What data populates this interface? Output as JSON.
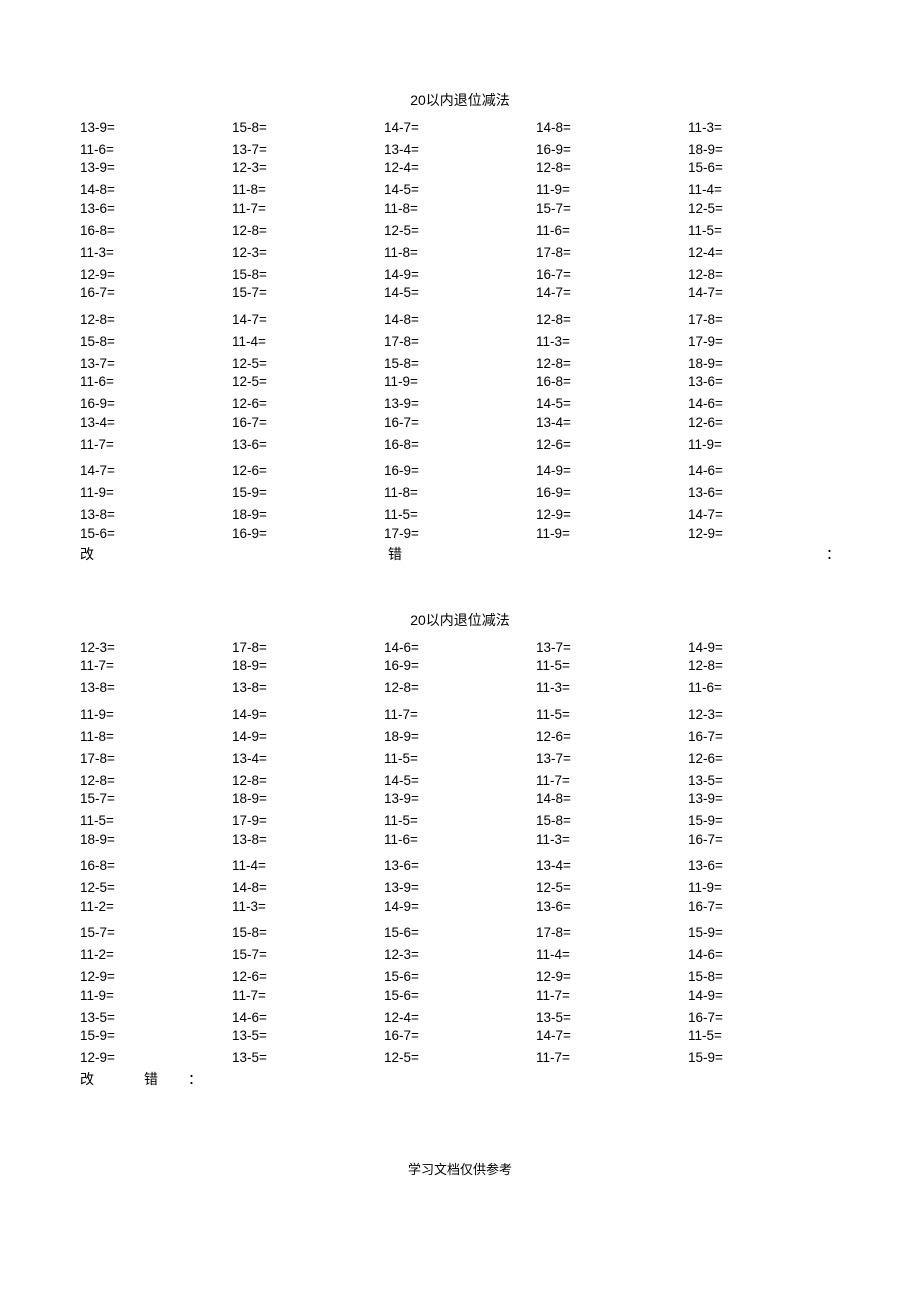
{
  "worksheet1": {
    "title": "20以内退位减法",
    "rows": [
      [
        "13-9=",
        "15-8=",
        "14-7=",
        "14-8=",
        "11-3="
      ],
      [
        "11-6=",
        "13-7=",
        "13-4=",
        "16-9=",
        "18-9="
      ],
      [
        "13-9=",
        "12-3=",
        "12-4=",
        "12-8=",
        "15-6="
      ],
      [
        "14-8=",
        "11-8=",
        "14-5=",
        "11-9=",
        "11-4="
      ],
      [
        "13-6=",
        "11-7=",
        "11-8=",
        "15-7=",
        "12-5="
      ],
      [
        "16-8=",
        "12-8=",
        "12-5=",
        "11-6=",
        "11-5="
      ],
      [
        "11-3=",
        "12-3=",
        "11-8=",
        "17-8=",
        "12-4="
      ],
      [
        "12-9=",
        "15-8=",
        "14-9=",
        "16-7=",
        "12-8="
      ],
      [
        "16-7=",
        "15-7=",
        "14-5=",
        "14-7=",
        "14-7="
      ],
      [
        "12-8=",
        "14-7=",
        "14-8=",
        "12-8=",
        "17-8="
      ],
      [
        "15-8=",
        "11-4=",
        "17-8=",
        "11-3=",
        "17-9="
      ],
      [
        "13-7=",
        "12-5=",
        "15-8=",
        "12-8=",
        "18-9="
      ],
      [
        "11-6=",
        "12-5=",
        "11-9=",
        "16-8=",
        "13-6="
      ],
      [
        "16-9=",
        "12-6=",
        "13-9=",
        "14-5=",
        "14-6="
      ],
      [
        "13-4=",
        "16-7=",
        "16-7=",
        "13-4=",
        "12-6="
      ],
      [
        "11-7=",
        "13-6=",
        "16-8=",
        "12-6=",
        "11-9="
      ],
      [
        "14-7=",
        "12-6=",
        "16-9=",
        "14-9=",
        "14-6="
      ],
      [
        "11-9=",
        "15-9=",
        "11-8=",
        "16-9=",
        "13-6="
      ],
      [
        "13-8=",
        "18-9=",
        "11-5=",
        "12-9=",
        "14-7="
      ],
      [
        "15-6=",
        "16-9=",
        "17-9=",
        "11-9=",
        "12-9="
      ]
    ],
    "footer": {
      "left": "改",
      "mid": "错",
      "right": "："
    }
  },
  "worksheet2": {
    "title": "20以内退位减法",
    "rows": [
      [
        "12-3=",
        "17-8=",
        "14-6=",
        "13-7=",
        "14-9="
      ],
      [
        "11-7=",
        "18-9=",
        "16-9=",
        "11-5=",
        "12-8="
      ],
      [
        "13-8=",
        "13-8=",
        "12-8=",
        "11-3=",
        "11-6="
      ],
      [
        "11-9=",
        "14-9=",
        "11-7=",
        "11-5=",
        "12-3="
      ],
      [
        "11-8=",
        "14-9=",
        "18-9=",
        "12-6=",
        "16-7="
      ],
      [
        "17-8=",
        "13-4=",
        "11-5=",
        "13-7=",
        "12-6="
      ],
      [
        "12-8=",
        "12-8=",
        "14-5=",
        "11-7=",
        "13-5="
      ],
      [
        "15-7=",
        "18-9=",
        "13-9=",
        "14-8=",
        "13-9="
      ],
      [
        "11-5=",
        "17-9=",
        "11-5=",
        "15-8=",
        "15-9="
      ],
      [
        "18-9=",
        "13-8=",
        "11-6=",
        "11-3=",
        "16-7="
      ],
      [
        "16-8=",
        "11-4=",
        "13-6=",
        "13-4=",
        "13-6="
      ],
      [
        "12-5=",
        "14-8=",
        "13-9=",
        "12-5=",
        "11-9="
      ],
      [
        "11-2=",
        "11-3=",
        "14-9=",
        "13-6=",
        "16-7="
      ],
      [
        "15-7=",
        "15-8=",
        "15-6=",
        "17-8=",
        "15-9="
      ],
      [
        "11-2=",
        "15-7=",
        "12-3=",
        "11-4=",
        "14-6="
      ],
      [
        "12-9=",
        "12-6=",
        "15-6=",
        "12-9=",
        "15-8="
      ],
      [
        "11-9=",
        "11-7=",
        "15-6=",
        "11-7=",
        "14-9="
      ],
      [
        "13-5=",
        "14-6=",
        "12-4=",
        "13-5=",
        "16-7="
      ],
      [
        "15-9=",
        "13-5=",
        "16-7=",
        "14-7=",
        "11-5="
      ],
      [
        "12-9=",
        "13-5=",
        "12-5=",
        "11-7=",
        "15-9="
      ]
    ],
    "footer": {
      "c1": "改",
      "c2": "错",
      "c3": "："
    }
  },
  "bottom_note": "学习文档仅供参考"
}
